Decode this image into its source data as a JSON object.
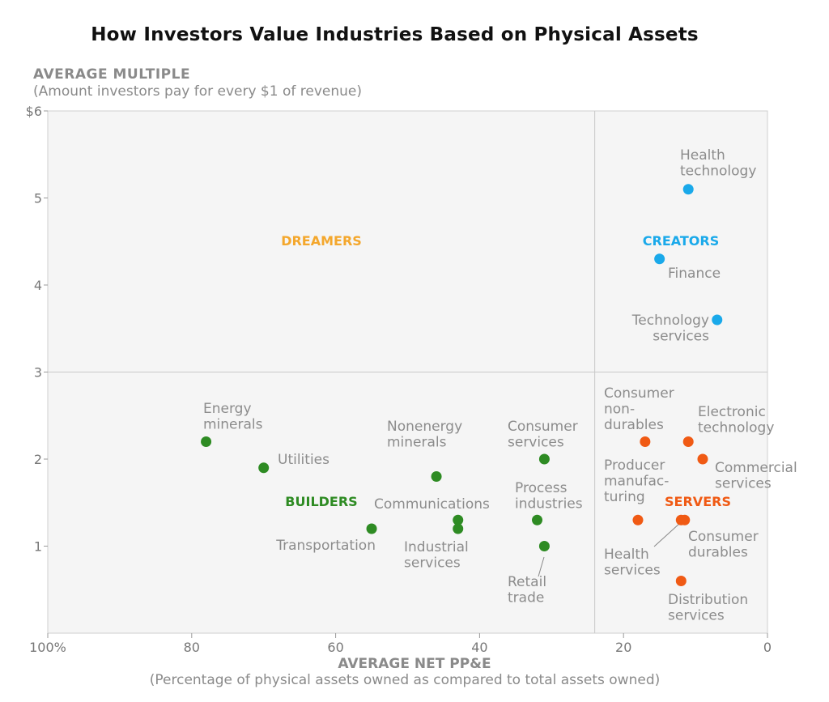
{
  "title": "How Investors Value Industries Based on Physical Assets",
  "y_title": "AVERAGE MULTIPLE",
  "y_subtitle": "(Amount investors pay for every $1 of revenue)",
  "x_title": "AVERAGE NET PP&E",
  "x_subtitle": "(Percentage of physical assets owned as compared to total assets owned)",
  "colors": {
    "creators": "#1aa9ea",
    "servers": "#f05a14",
    "builders": "#2e8b23",
    "dreamers": "#f4a72c",
    "label": "#8c8c8c"
  },
  "chart_data": {
    "type": "scatter",
    "x_axis": {
      "range": [
        100,
        0
      ],
      "ticks": [
        100,
        80,
        60,
        40,
        20,
        0
      ],
      "tick_labels": [
        "100%",
        "80",
        "60",
        "40",
        "20",
        "0"
      ],
      "label": "AVERAGE NET PP&E"
    },
    "y_axis": {
      "range": [
        0,
        6
      ],
      "ticks": [
        1,
        2,
        3,
        4,
        5,
        6
      ],
      "tick_labels": [
        "1",
        "2",
        "3",
        "4",
        "5",
        "$6"
      ],
      "label": "AVERAGE MULTIPLE"
    },
    "dividers": {
      "x": 24,
      "y": 3
    },
    "quadrants": [
      {
        "name": "DREAMERS",
        "color": "#f4a72c"
      },
      {
        "name": "CREATORS",
        "color": "#1aa9ea"
      },
      {
        "name": "BUILDERS",
        "color": "#2e8b23"
      },
      {
        "name": "SERVERS",
        "color": "#f05a14"
      }
    ],
    "series": [
      {
        "name": "CREATORS",
        "color": "#1aa9ea",
        "points": [
          {
            "label": "Health technology",
            "x": 11,
            "y": 5.1
          },
          {
            "label": "Finance",
            "x": 15,
            "y": 4.3
          },
          {
            "label": "Technology services",
            "x": 7,
            "y": 3.6
          }
        ]
      },
      {
        "name": "SERVERS",
        "color": "#f05a14",
        "points": [
          {
            "label": "Consumer non-durables",
            "x": 17,
            "y": 2.2
          },
          {
            "label": "Electronic technology",
            "x": 11,
            "y": 2.2
          },
          {
            "label": "Commercial services",
            "x": 9,
            "y": 2.0
          },
          {
            "label": "Producer manufacturing",
            "x": 18,
            "y": 1.3
          },
          {
            "label": "Consumer durables",
            "x": 11.5,
            "y": 1.3
          },
          {
            "label": "Health services",
            "x": 12,
            "y": 1.3
          },
          {
            "label": "Distribution services",
            "x": 12,
            "y": 0.6
          }
        ]
      },
      {
        "name": "BUILDERS",
        "color": "#2e8b23",
        "points": [
          {
            "label": "Energy minerals",
            "x": 78,
            "y": 2.2
          },
          {
            "label": "Utilities",
            "x": 70,
            "y": 1.9
          },
          {
            "label": "Nonenergy minerals",
            "x": 46,
            "y": 1.8
          },
          {
            "label": "Consumer services",
            "x": 31,
            "y": 2.0
          },
          {
            "label": "Communications",
            "x": 43,
            "y": 1.3
          },
          {
            "label": "Industrial services",
            "x": 43,
            "y": 1.2
          },
          {
            "label": "Process industries",
            "x": 32,
            "y": 1.3
          },
          {
            "label": "Transportation",
            "x": 55,
            "y": 1.2
          },
          {
            "label": "Retail trade",
            "x": 31,
            "y": 1.0
          }
        ]
      }
    ]
  }
}
